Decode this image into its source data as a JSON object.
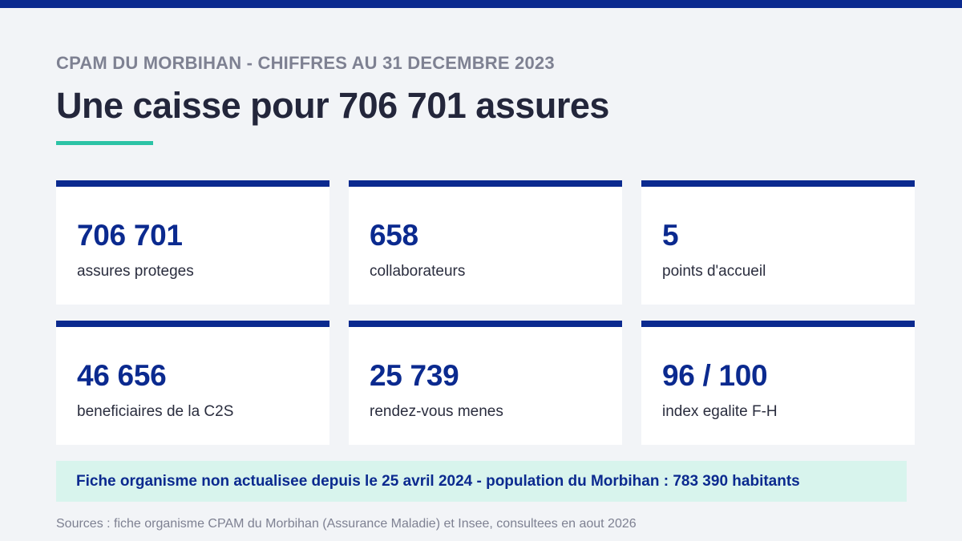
{
  "header": {
    "subtitle": "CPAM DU MORBIHAN - CHIFFRES AU 31 DECEMBRE 2023",
    "title": "Une caisse pour 706 701 assures"
  },
  "stats": [
    {
      "value": "706 701",
      "label": "assures proteges"
    },
    {
      "value": "658",
      "label": "collaborateurs"
    },
    {
      "value": "5",
      "label": "points d'accueil"
    },
    {
      "value": "46 656",
      "label": "beneficiaires de la C2S"
    },
    {
      "value": "25 739",
      "label": "rendez-vous menes"
    },
    {
      "value": "96 / 100",
      "label": "index egalite F-H"
    }
  ],
  "notice": "Fiche organisme non actualisee depuis le 25 avril 2024 - population du Morbihan : 783 390 habitants",
  "sources": "Sources : fiche organisme CPAM du Morbihan (Assurance Maladie) et Insee, consultees en aout 2026",
  "colors": {
    "primary": "#0b2a8f",
    "accent": "#2cc3a6",
    "background": "#f2f4f7",
    "notice_background": "#d8f4ed"
  }
}
